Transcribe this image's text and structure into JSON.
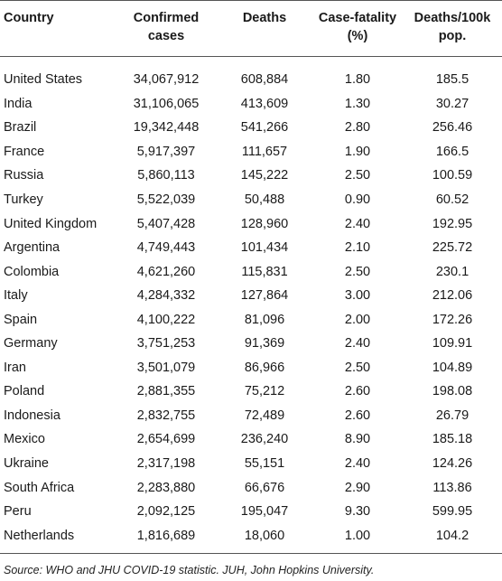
{
  "headers": {
    "country": "Country",
    "confirmed": "Confirmed cases",
    "deaths": "Deaths",
    "cfr": "Case-fatality (%)",
    "per100k": "Deaths/100k pop."
  },
  "rows": [
    {
      "country": "United States",
      "confirmed": "34,067,912",
      "deaths": "608,884",
      "cfr": "1.80",
      "per100k": "185.5"
    },
    {
      "country": "India",
      "confirmed": "31,106,065",
      "deaths": "413,609",
      "cfr": "1.30",
      "per100k": "30.27"
    },
    {
      "country": "Brazil",
      "confirmed": "19,342,448",
      "deaths": "541,266",
      "cfr": "2.80",
      "per100k": "256.46"
    },
    {
      "country": "France",
      "confirmed": "5,917,397",
      "deaths": "111,657",
      "cfr": "1.90",
      "per100k": "166.5"
    },
    {
      "country": "Russia",
      "confirmed": "5,860,113",
      "deaths": "145,222",
      "cfr": "2.50",
      "per100k": "100.59"
    },
    {
      "country": "Turkey",
      "confirmed": "5,522,039",
      "deaths": "50,488",
      "cfr": "0.90",
      "per100k": "60.52"
    },
    {
      "country": "United Kingdom",
      "confirmed": "5,407,428",
      "deaths": "128,960",
      "cfr": "2.40",
      "per100k": "192.95"
    },
    {
      "country": "Argentina",
      "confirmed": "4,749,443",
      "deaths": "101,434",
      "cfr": "2.10",
      "per100k": "225.72"
    },
    {
      "country": "Colombia",
      "confirmed": "4,621,260",
      "deaths": "115,831",
      "cfr": "2.50",
      "per100k": "230.1"
    },
    {
      "country": "Italy",
      "confirmed": "4,284,332",
      "deaths": "127,864",
      "cfr": "3.00",
      "per100k": "212.06"
    },
    {
      "country": "Spain",
      "confirmed": "4,100,222",
      "deaths": "81,096",
      "cfr": "2.00",
      "per100k": "172.26"
    },
    {
      "country": "Germany",
      "confirmed": "3,751,253",
      "deaths": "91,369",
      "cfr": "2.40",
      "per100k": "109.91"
    },
    {
      "country": "Iran",
      "confirmed": "3,501,079",
      "deaths": "86,966",
      "cfr": "2.50",
      "per100k": "104.89"
    },
    {
      "country": "Poland",
      "confirmed": "2,881,355",
      "deaths": "75,212",
      "cfr": "2.60",
      "per100k": "198.08"
    },
    {
      "country": "Indonesia",
      "confirmed": "2,832,755",
      "deaths": "72,489",
      "cfr": "2.60",
      "per100k": "26.79"
    },
    {
      "country": "Mexico",
      "confirmed": "2,654,699",
      "deaths": "236,240",
      "cfr": "8.90",
      "per100k": "185.18"
    },
    {
      "country": "Ukraine",
      "confirmed": "2,317,198",
      "deaths": "55,151",
      "cfr": "2.40",
      "per100k": "124.26"
    },
    {
      "country": "South Africa",
      "confirmed": "2,283,880",
      "deaths": "66,676",
      "cfr": "2.90",
      "per100k": "113.86"
    },
    {
      "country": "Peru",
      "confirmed": "2,092,125",
      "deaths": "195,047",
      "cfr": "9.30",
      "per100k": "599.95"
    },
    {
      "country": "Netherlands",
      "confirmed": "1,816,689",
      "deaths": "18,060",
      "cfr": "1.00",
      "per100k": "104.2"
    }
  ],
  "footnote": "Source: WHO and JHU COVID-19 statistic. JUH, John Hopkins University."
}
